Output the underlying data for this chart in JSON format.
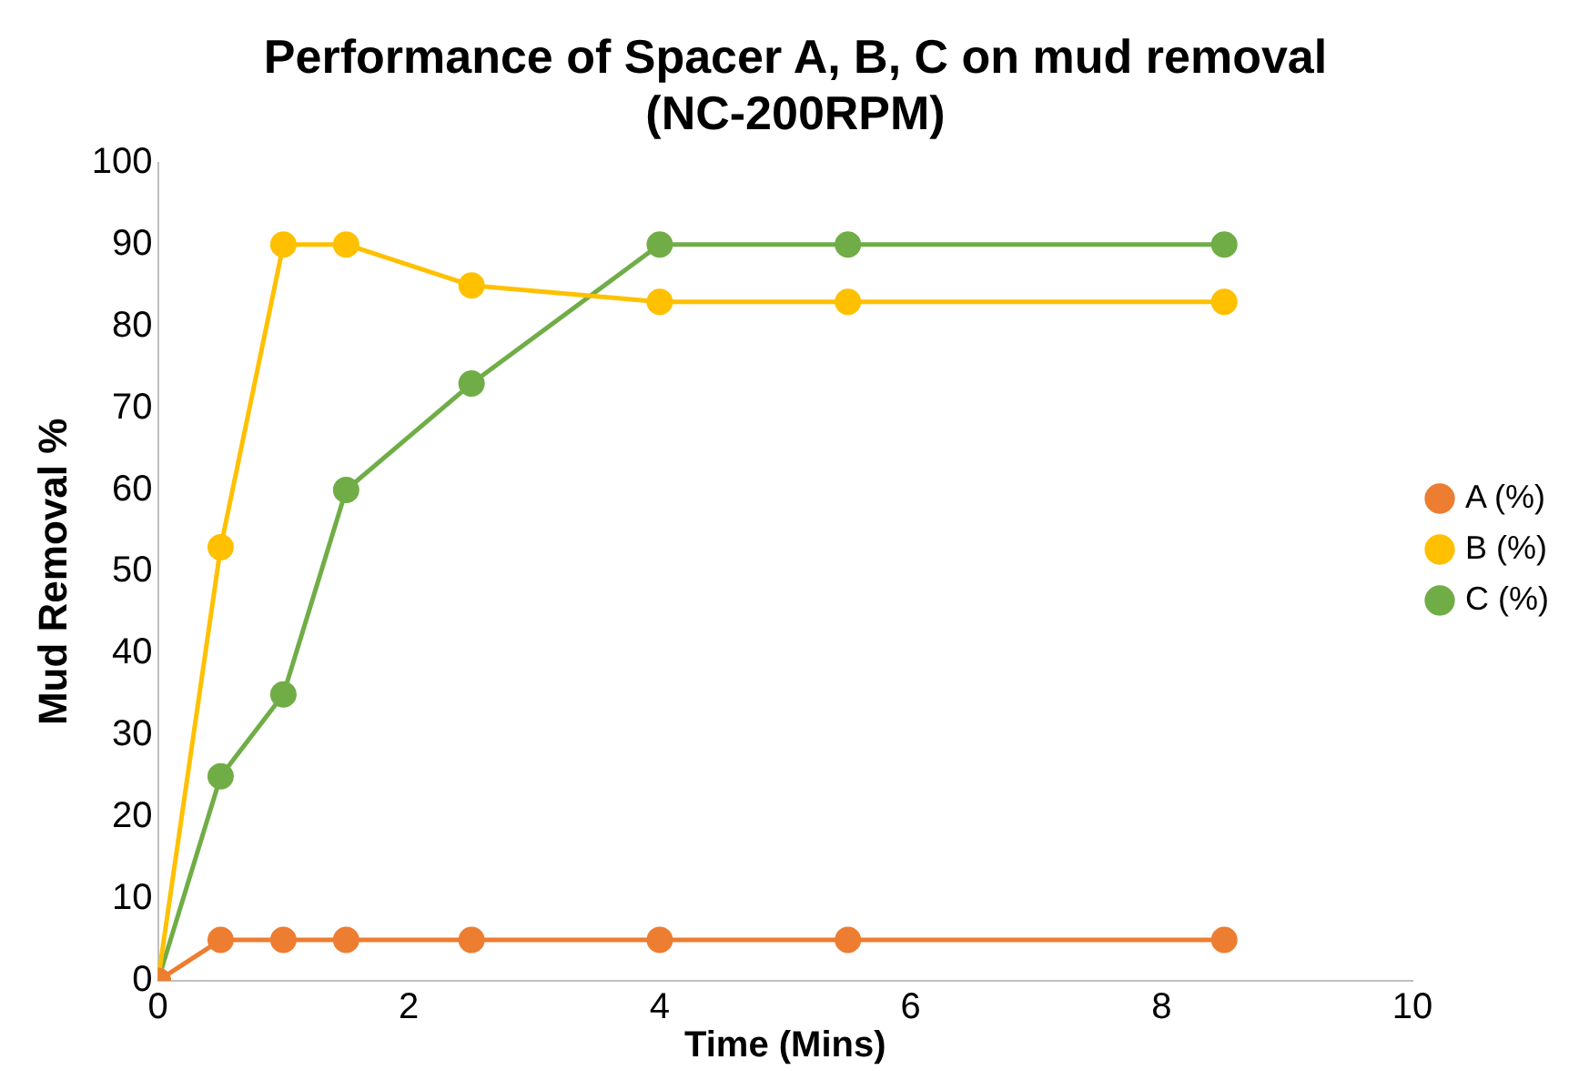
{
  "chart_data": {
    "type": "line",
    "title": "Performance of Spacer A, B, C on mud removal (NC-200RPM)",
    "xlabel": "Time (Mins)",
    "ylabel": "Mud Removal %",
    "x": [
      0,
      0.5,
      1,
      1.5,
      2.5,
      4,
      5.5,
      8.5
    ],
    "series": [
      {
        "name": "A (%)",
        "color": "#ed7d31",
        "values": [
          0,
          5,
          5,
          5,
          5,
          5,
          5,
          5
        ]
      },
      {
        "name": "B (%)",
        "color": "#ffc000",
        "values": [
          0,
          53,
          90,
          90,
          85,
          83,
          83,
          83
        ]
      },
      {
        "name": "C (%)",
        "color": "#70ad47",
        "values": [
          0,
          25,
          35,
          60,
          73,
          90,
          90,
          90
        ]
      }
    ],
    "xlim": [
      0,
      10
    ],
    "xticks": [
      0,
      2,
      4,
      6,
      8,
      10
    ],
    "ylim": [
      0,
      100
    ],
    "yticks": [
      0,
      10,
      20,
      30,
      40,
      50,
      60,
      70,
      80,
      90,
      100
    ],
    "grid": false,
    "legend": "right",
    "marker": "circle",
    "line_style": "solid"
  }
}
